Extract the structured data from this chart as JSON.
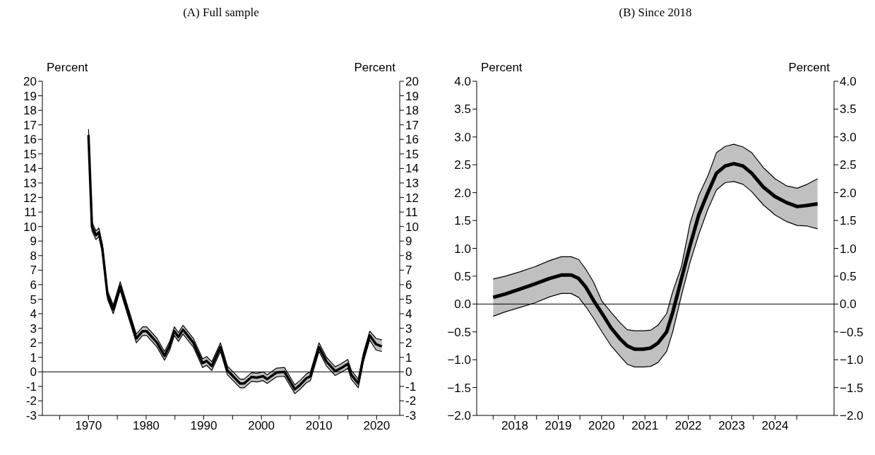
{
  "chart_data": [
    {
      "type": "line",
      "title": "(A) Full sample",
      "ylabel": "Percent",
      "y2label": "Percent",
      "x": [
        1970.0,
        1970.6,
        1971.3,
        1971.8,
        1972.4,
        1973.3,
        1974.3,
        1975.5,
        1976.5,
        1978.3,
        1979.4,
        1980.1,
        1981.9,
        1983.2,
        1984.1,
        1984.9,
        1985.6,
        1986.4,
        1988.2,
        1989.8,
        1990.5,
        1991.4,
        1992.9,
        1994.1,
        1996.3,
        1997.0,
        1998.3,
        1999.2,
        2000.3,
        2001.0,
        2002.6,
        2004.0,
        2005.8,
        2006.7,
        2007.8,
        2008.5,
        2010.0,
        2011.3,
        2012.8,
        2013.8,
        2015.0,
        2015.6,
        2016.8,
        2017.7,
        2018.8,
        2019.9,
        2020.9
      ],
      "series": [
        {
          "color": "#000000",
          "values": [
            16.3,
            10.0,
            9.4,
            9.6,
            8.5,
            5.3,
            4.3,
            5.9,
            4.6,
            2.3,
            2.8,
            2.8,
            2.0,
            1.1,
            1.8,
            2.8,
            2.4,
            2.9,
            2.0,
            0.6,
            0.75,
            0.4,
            1.7,
            0.1,
            -0.8,
            -0.8,
            -0.35,
            -0.4,
            -0.3,
            -0.5,
            -0.05,
            0.0,
            -1.2,
            -0.9,
            -0.45,
            -0.3,
            1.7,
            0.7,
            0.05,
            0.25,
            0.55,
            -0.2,
            -0.8,
            1.0,
            2.5,
            1.9,
            1.75
          ],
          "lower": [
            16.0,
            9.7,
            9.1,
            9.3,
            8.2,
            5.0,
            4.0,
            5.6,
            4.3,
            2.0,
            2.5,
            2.5,
            1.7,
            0.8,
            1.5,
            2.5,
            2.1,
            2.6,
            1.7,
            0.3,
            0.45,
            0.1,
            1.4,
            -0.2,
            -1.1,
            -1.1,
            -0.65,
            -0.7,
            -0.6,
            -0.8,
            -0.35,
            -0.3,
            -1.5,
            -1.2,
            -0.75,
            -0.6,
            1.4,
            0.4,
            -0.25,
            -0.05,
            0.25,
            -0.5,
            -1.1,
            0.7,
            2.2,
            1.5,
            1.4
          ],
          "upper": [
            16.7,
            10.3,
            9.7,
            9.9,
            8.8,
            5.6,
            4.6,
            6.2,
            4.9,
            2.6,
            3.1,
            3.1,
            2.3,
            1.4,
            2.1,
            3.1,
            2.7,
            3.2,
            2.3,
            0.9,
            1.05,
            0.7,
            2.0,
            0.4,
            -0.5,
            -0.5,
            -0.05,
            -0.1,
            0.0,
            -0.2,
            0.25,
            0.3,
            -0.9,
            -0.6,
            -0.15,
            0.0,
            2.0,
            1.0,
            0.35,
            0.55,
            0.85,
            0.1,
            -0.5,
            1.3,
            2.8,
            2.3,
            2.2
          ]
        },
        {
          "color": "#000000",
          "values": [
            16.0,
            9.7,
            9.1,
            9.3,
            8.2,
            5.0,
            4.0,
            5.6,
            4.3,
            2.0,
            2.5,
            2.5,
            1.7,
            0.8,
            1.5,
            2.5,
            2.1,
            2.6,
            1.7,
            0.3,
            0.45,
            0.1,
            1.4,
            -0.2,
            -1.1,
            -1.1,
            -0.65,
            -0.7,
            -0.6,
            -0.8,
            -0.35,
            -0.3,
            -1.5,
            -1.2,
            -0.75,
            -0.6,
            1.4,
            0.4,
            -0.25,
            -0.05,
            0.25,
            -0.5,
            -1.1,
            0.7,
            2.2,
            1.5,
            1.4
          ]
        },
        {
          "color": "#000000",
          "values": [
            16.7,
            10.3,
            9.7,
            9.9,
            8.8,
            5.6,
            4.6,
            6.2,
            4.9,
            2.6,
            3.1,
            3.1,
            2.3,
            1.4,
            2.1,
            3.1,
            2.7,
            3.2,
            2.3,
            0.9,
            1.05,
            0.7,
            2.0,
            0.4,
            -0.5,
            -0.5,
            -0.05,
            -0.1,
            0.0,
            -0.2,
            0.25,
            0.3,
            -0.9,
            -0.6,
            -0.15,
            0.0,
            2.0,
            1.0,
            0.35,
            0.55,
            0.85,
            0.1,
            -0.5,
            1.3,
            2.8,
            2.3,
            2.2
          ]
        }
      ],
      "xlim": [
        1962,
        2024
      ],
      "xticks": [
        {
          "value": 1965,
          "label": null
        },
        {
          "value": 1970,
          "label": "1970"
        },
        {
          "value": 1975,
          "label": null
        },
        {
          "value": 1980,
          "label": "1980"
        },
        {
          "value": 1985,
          "label": null
        },
        {
          "value": 1990,
          "label": "1990"
        },
        {
          "value": 1995,
          "label": null
        },
        {
          "value": 2000,
          "label": "2000"
        },
        {
          "value": 2005,
          "label": null
        },
        {
          "value": 2010,
          "label": "2010"
        },
        {
          "value": 2015,
          "label": null
        },
        {
          "value": 2020,
          "label": "2020"
        }
      ],
      "ylim": [
        -3,
        20
      ],
      "yticks": [
        -3,
        -2,
        -1,
        0,
        1,
        2,
        3,
        4,
        5,
        6,
        7,
        8,
        9,
        10,
        11,
        12,
        13,
        14,
        15,
        16,
        17,
        18,
        19,
        20
      ],
      "y2lim": [
        -3,
        20
      ],
      "y2ticks": [
        -3,
        -2,
        -1,
        0,
        1,
        2,
        3,
        4,
        5,
        6,
        7,
        8,
        9,
        10,
        11,
        12,
        13,
        14,
        15,
        16,
        17,
        18,
        19,
        20
      ],
      "ref_lines": [
        {
          "axis": "y",
          "value": 0,
          "color": "#000000"
        }
      ],
      "grid": false,
      "legend": false
    },
    {
      "type": "line",
      "title": "(B) Since 2018",
      "ylabel": "Percent",
      "y2label": "Percent",
      "x": [
        2018.0,
        2018.28,
        2018.62,
        2018.96,
        2019.3,
        2019.57,
        2019.8,
        2019.97,
        2020.14,
        2020.31,
        2020.51,
        2020.72,
        2020.92,
        2021.09,
        2021.26,
        2021.46,
        2021.63,
        2021.8,
        2022.0,
        2022.14,
        2022.34,
        2022.54,
        2022.74,
        2022.95,
        2023.15,
        2023.35,
        2023.55,
        2023.76,
        2023.96,
        2024.23,
        2024.5,
        2024.77,
        2025.01,
        2025.24,
        2025.48
      ],
      "series": [
        {
          "color": "#000000",
          "values": [
            0.12,
            0.18,
            0.27,
            0.36,
            0.46,
            0.52,
            0.52,
            0.46,
            0.3,
            0.07,
            -0.17,
            -0.43,
            -0.62,
            -0.75,
            -0.81,
            -0.81,
            -0.79,
            -0.7,
            -0.5,
            -0.15,
            0.45,
            1.05,
            1.6,
            2.0,
            2.35,
            2.48,
            2.52,
            2.48,
            2.35,
            2.1,
            1.93,
            1.82,
            1.75,
            1.77,
            1.8
          ],
          "lower": [
            -0.22,
            -0.14,
            -0.06,
            0.02,
            0.13,
            0.19,
            0.19,
            0.12,
            -0.05,
            -0.25,
            -0.5,
            -0.75,
            -0.93,
            -1.08,
            -1.13,
            -1.13,
            -1.12,
            -1.05,
            -0.85,
            -0.5,
            0.15,
            0.75,
            1.25,
            1.7,
            2.05,
            2.18,
            2.2,
            2.15,
            2.02,
            1.78,
            1.6,
            1.48,
            1.41,
            1.4,
            1.35
          ],
          "upper": [
            0.45,
            0.5,
            0.58,
            0.67,
            0.78,
            0.85,
            0.85,
            0.8,
            0.62,
            0.4,
            0.05,
            -0.15,
            -0.33,
            -0.46,
            -0.48,
            -0.48,
            -0.47,
            -0.38,
            -0.17,
            0.22,
            0.67,
            1.45,
            1.95,
            2.3,
            2.72,
            2.83,
            2.87,
            2.82,
            2.72,
            2.45,
            2.25,
            2.12,
            2.08,
            2.15,
            2.25
          ]
        },
        {
          "color": "#000000",
          "values": [
            -0.22,
            -0.14,
            -0.06,
            0.02,
            0.13,
            0.19,
            0.19,
            0.12,
            -0.05,
            -0.25,
            -0.5,
            -0.75,
            -0.93,
            -1.08,
            -1.13,
            -1.13,
            -1.12,
            -1.05,
            -0.85,
            -0.5,
            0.15,
            0.75,
            1.25,
            1.7,
            2.05,
            2.18,
            2.2,
            2.15,
            2.02,
            1.78,
            1.6,
            1.48,
            1.41,
            1.4,
            1.35
          ]
        },
        {
          "color": "#000000",
          "values": [
            0.45,
            0.5,
            0.58,
            0.67,
            0.78,
            0.85,
            0.85,
            0.8,
            0.62,
            0.4,
            0.05,
            -0.15,
            -0.33,
            -0.46,
            -0.48,
            -0.48,
            -0.47,
            -0.38,
            -0.17,
            0.22,
            0.67,
            1.45,
            1.95,
            2.3,
            2.72,
            2.83,
            2.87,
            2.82,
            2.72,
            2.45,
            2.25,
            2.12,
            2.08,
            2.15,
            2.25
          ]
        }
      ],
      "xlim": [
        2017.62,
        2025.86
      ],
      "xticks": [
        {
          "value": 2018,
          "label": null
        },
        {
          "value": 2018.5,
          "label": "2018"
        },
        {
          "value": 2019,
          "label": null
        },
        {
          "value": 2019.5,
          "label": "2019"
        },
        {
          "value": 2020,
          "label": null
        },
        {
          "value": 2020.5,
          "label": "2020"
        },
        {
          "value": 2021,
          "label": null
        },
        {
          "value": 2021.5,
          "label": "2021"
        },
        {
          "value": 2022,
          "label": null
        },
        {
          "value": 2022.5,
          "label": "2022"
        },
        {
          "value": 2023,
          "label": null
        },
        {
          "value": 2023.5,
          "label": "2023"
        },
        {
          "value": 2024,
          "label": null
        },
        {
          "value": 2024.5,
          "label": "2024"
        },
        {
          "value": 2025,
          "label": null
        }
      ],
      "ylim": [
        -2,
        4
      ],
      "yticks": [
        {
          "value": -2,
          "label": "−2.0"
        },
        {
          "value": -1.5,
          "label": "−1.5"
        },
        {
          "value": -1,
          "label": "−1.0"
        },
        {
          "value": -0.5,
          "label": "−0.5"
        },
        {
          "value": 0,
          "label": "0.0"
        },
        {
          "value": 0.5,
          "label": "0.5"
        },
        {
          "value": 1,
          "label": "1.0"
        },
        {
          "value": 1.5,
          "label": "1.5"
        },
        {
          "value": 2,
          "label": "2.0"
        },
        {
          "value": 2.5,
          "label": "2.5"
        },
        {
          "value": 3,
          "label": "3.0"
        },
        {
          "value": 3.5,
          "label": "3.5"
        },
        {
          "value": 4,
          "label": "4.0"
        }
      ],
      "y2lim": [
        -2,
        4
      ],
      "y2ticks": [
        {
          "value": -2,
          "label": "−2.0"
        },
        {
          "value": -1.5,
          "label": "−1.5"
        },
        {
          "value": -1,
          "label": "−1.0"
        },
        {
          "value": -0.5,
          "label": "−0.5"
        },
        {
          "value": 0,
          "label": "0.0"
        },
        {
          "value": 0.5,
          "label": "0.5"
        },
        {
          "value": 1,
          "label": "1.0"
        },
        {
          "value": 1.5,
          "label": "1.5"
        },
        {
          "value": 2,
          "label": "2.0"
        },
        {
          "value": 2.5,
          "label": "2.5"
        },
        {
          "value": 3,
          "label": "3.0"
        },
        {
          "value": 3.5,
          "label": "3.5"
        },
        {
          "value": 4,
          "label": "4.0"
        }
      ],
      "ref_lines": [
        {
          "axis": "y",
          "value": 0,
          "color": "#000000"
        }
      ],
      "grid": false,
      "legend": false
    }
  ]
}
